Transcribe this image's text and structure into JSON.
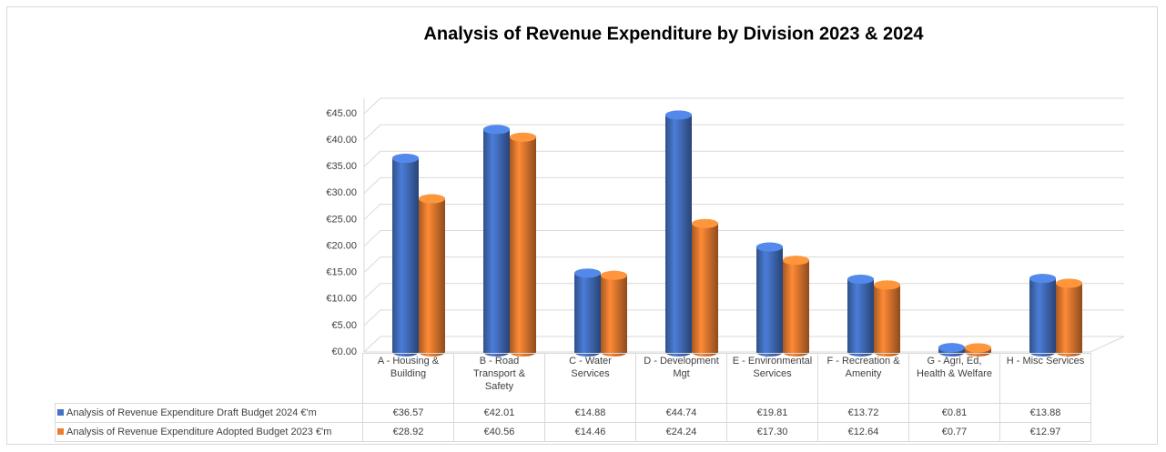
{
  "chart_data": {
    "type": "bar3d",
    "title": "Analysis of Revenue Expenditure by Division 2023 & 2024",
    "categories": [
      "A - Housing & Building",
      "B - Road Transport & Safety",
      "C - Water Services",
      "D - Development Mgt",
      "E - Environmental Services",
      "F - Recreation & Amenity",
      "G - Agri, Ed, Health & Welfare",
      "H - Misc Services"
    ],
    "series": [
      {
        "name": "Analysis of Revenue Expenditure  Draft Budget 2024 €'m",
        "color": "#4472c4",
        "values": [
          36.57,
          42.01,
          14.88,
          44.74,
          19.81,
          13.72,
          0.81,
          13.88
        ],
        "value_labels": [
          "€36.57",
          "€42.01",
          "€14.88",
          "€44.74",
          "€19.81",
          "€13.72",
          "€0.81",
          "€13.88"
        ]
      },
      {
        "name": "Analysis of Revenue Expenditure  Adopted Budget 2023 €'m",
        "color": "#ed7d31",
        "values": [
          28.92,
          40.56,
          14.46,
          24.24,
          17.3,
          12.64,
          0.77,
          12.97
        ],
        "value_labels": [
          "€28.92",
          "€40.56",
          "€14.46",
          "€24.24",
          "€17.30",
          "€12.64",
          "€0.77",
          "€12.97"
        ]
      }
    ],
    "ylim": [
      0,
      45
    ],
    "yticks": [
      {
        "value": 0,
        "label": "€0.00"
      },
      {
        "value": 5,
        "label": "€5.00"
      },
      {
        "value": 10,
        "label": "€10.00"
      },
      {
        "value": 15,
        "label": "€15.00"
      },
      {
        "value": 20,
        "label": "€20.00"
      },
      {
        "value": 25,
        "label": "€25.00"
      },
      {
        "value": 30,
        "label": "€30.00"
      },
      {
        "value": 35,
        "label": "€35.00"
      },
      {
        "value": 40,
        "label": "€40.00"
      },
      {
        "value": 45,
        "label": "€45.00"
      }
    ],
    "grid": true
  }
}
